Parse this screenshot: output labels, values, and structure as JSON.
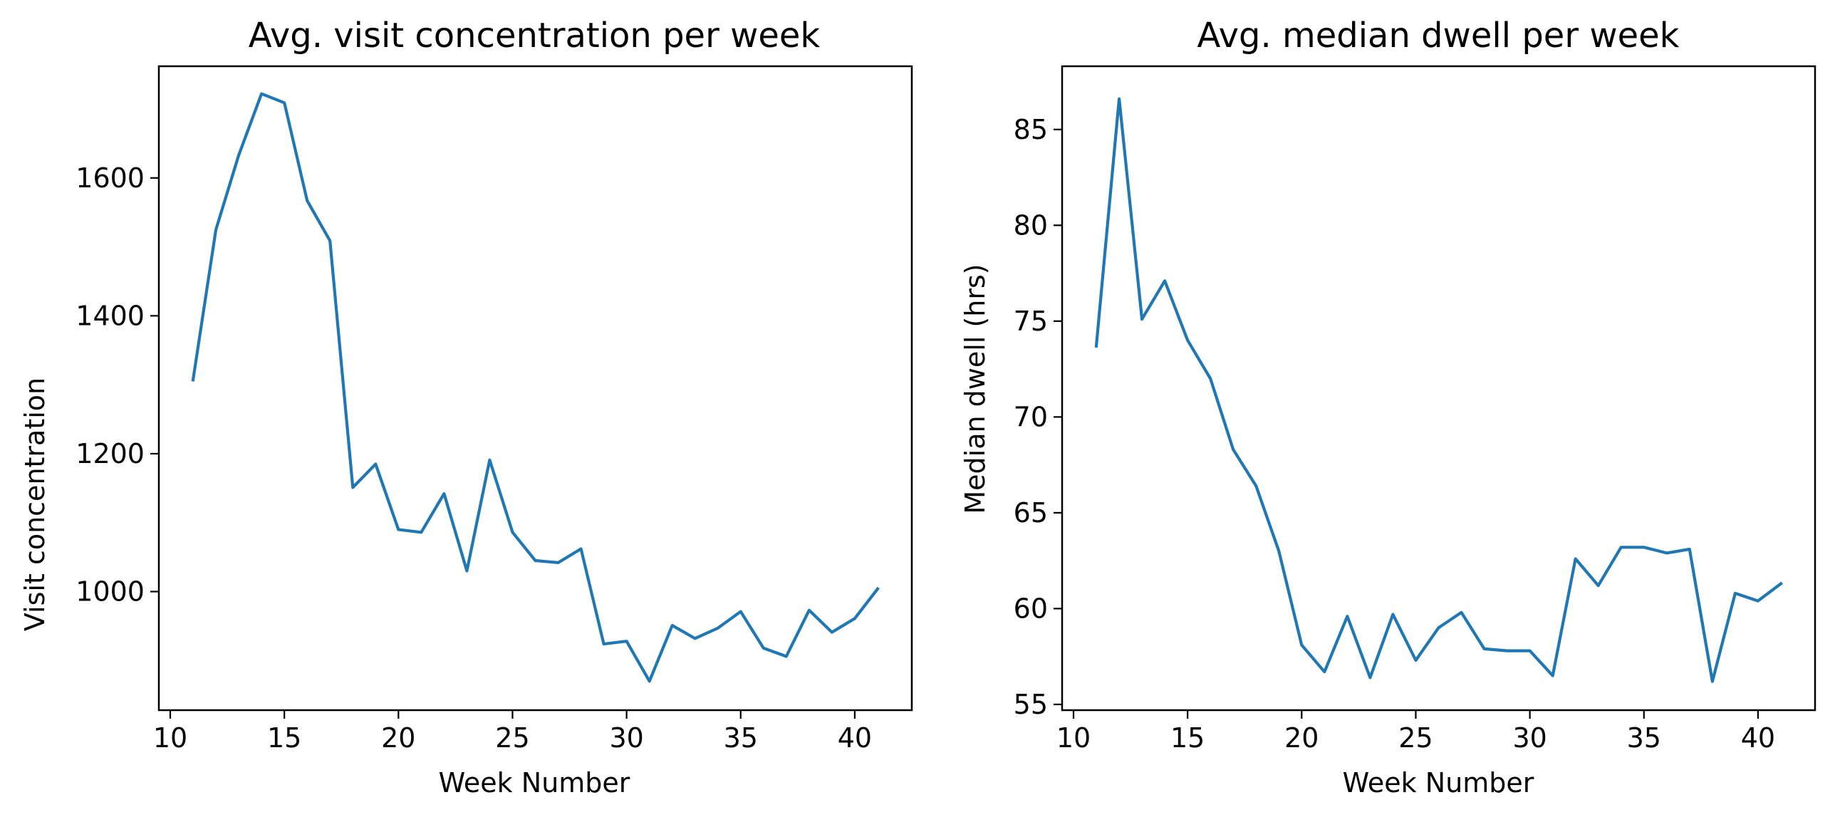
{
  "chart_data": [
    {
      "type": "line",
      "title": "Avg. visit concentration per week",
      "xlabel": "Week Number",
      "ylabel": "Visit concentration",
      "xlim": [
        9.5,
        42.5
      ],
      "ylim": [
        828,
        1762
      ],
      "xticks": [
        10,
        15,
        20,
        25,
        30,
        35,
        40
      ],
      "yticks": [
        1000,
        1200,
        1400,
        1600
      ],
      "grid": false,
      "series": [
        {
          "color": "#1f77b4",
          "x": [
            11,
            12,
            13,
            14,
            15,
            16,
            17,
            18,
            19,
            20,
            21,
            22,
            23,
            24,
            25,
            26,
            27,
            28,
            29,
            30,
            31,
            32,
            33,
            34,
            35,
            36,
            37,
            38,
            39,
            40,
            41
          ],
          "y": [
            1307,
            1525,
            1633,
            1722,
            1709,
            1567,
            1509,
            1151,
            1185,
            1090,
            1086,
            1142,
            1030,
            1191,
            1086,
            1045,
            1042,
            1062,
            924,
            928,
            870,
            951,
            932,
            947,
            971,
            918,
            906,
            973,
            941,
            961,
            1004
          ]
        }
      ]
    },
    {
      "type": "line",
      "title": "Avg. median dwell per week",
      "xlabel": "Week Number",
      "ylabel": "Median dwell (hrs)",
      "xlim": [
        9.5,
        42.5
      ],
      "ylim": [
        54.7,
        88.3
      ],
      "xticks": [
        10,
        15,
        20,
        25,
        30,
        35,
        40
      ],
      "yticks": [
        55,
        60,
        65,
        70,
        75,
        80,
        85
      ],
      "grid": false,
      "series": [
        {
          "color": "#1f77b4",
          "x": [
            11,
            12,
            13,
            14,
            15,
            16,
            17,
            18,
            19,
            20,
            21,
            22,
            23,
            24,
            25,
            26,
            27,
            28,
            29,
            30,
            31,
            32,
            33,
            34,
            35,
            36,
            37,
            38,
            39,
            40,
            41
          ],
          "y": [
            73.7,
            86.6,
            75.1,
            77.1,
            74.0,
            72.0,
            68.3,
            66.4,
            63.0,
            58.1,
            56.7,
            59.6,
            56.4,
            59.7,
            57.3,
            59.0,
            59.8,
            57.9,
            57.8,
            57.8,
            56.5,
            62.6,
            61.2,
            63.2,
            63.2,
            62.9,
            63.1,
            56.2,
            60.8,
            60.4,
            61.3
          ]
        }
      ]
    }
  ]
}
